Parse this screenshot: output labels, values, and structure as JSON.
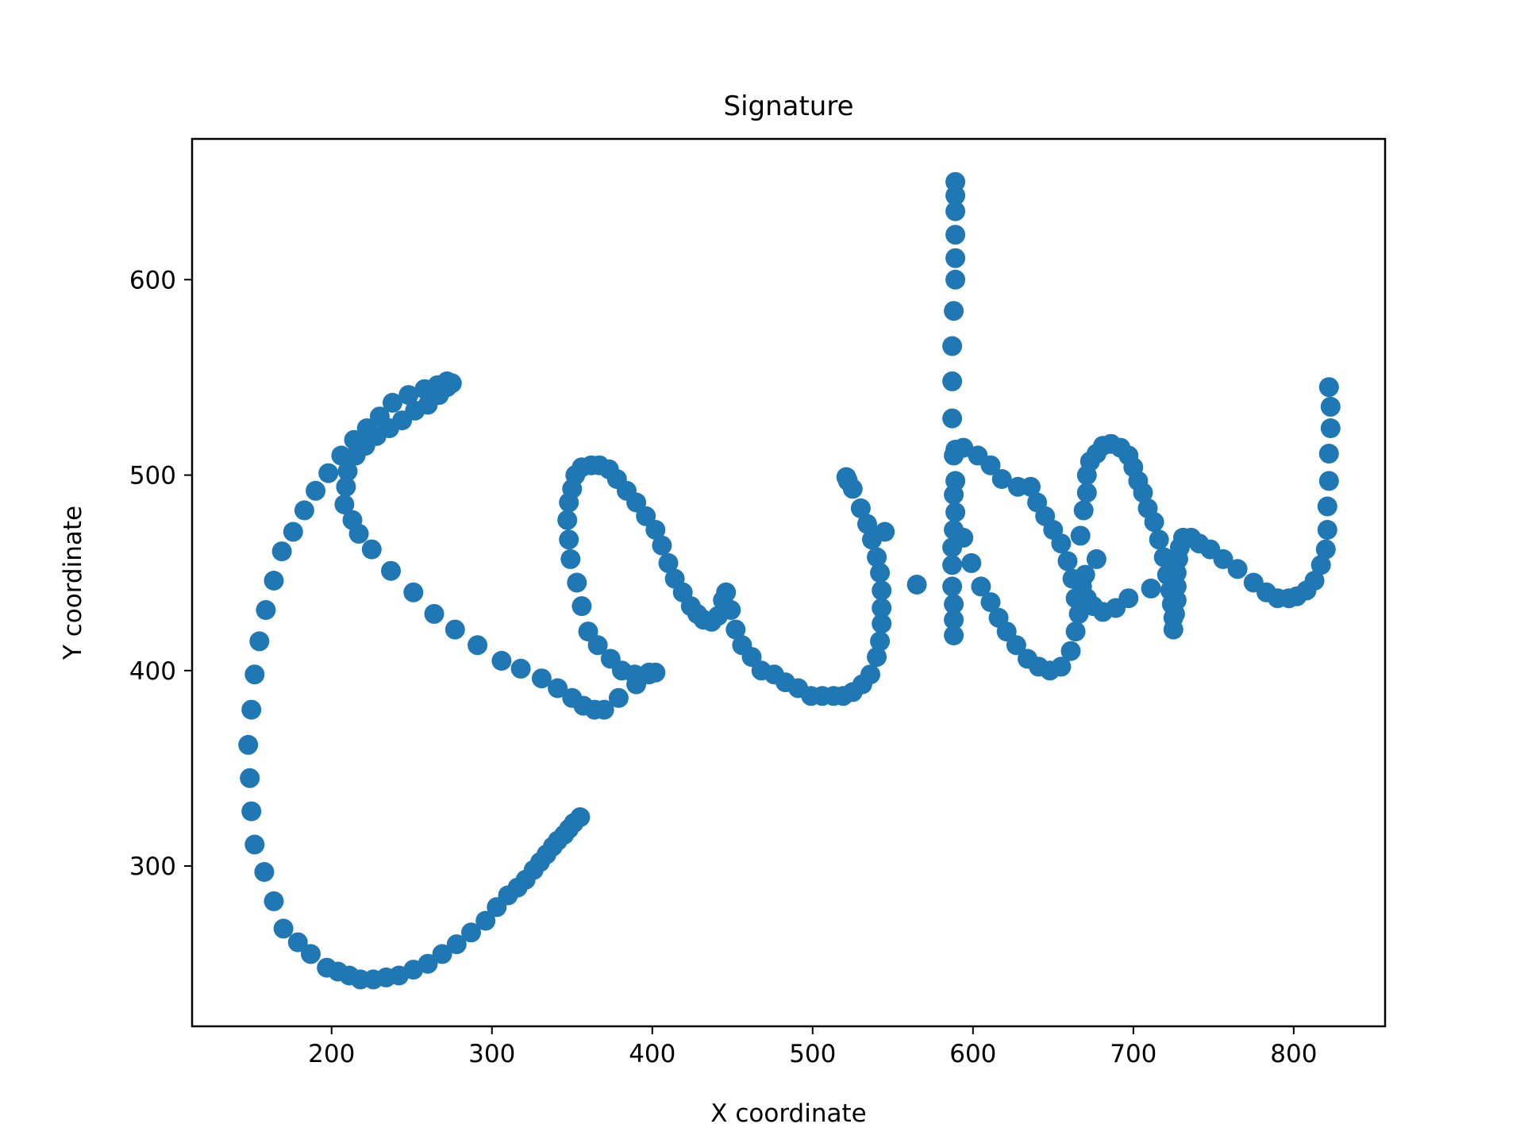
{
  "chart_data": {
    "type": "scatter",
    "title": "Signature",
    "xlabel": "X coordinate",
    "ylabel": "Y coordinate",
    "xlim": [
      113,
      857
    ],
    "ylim": [
      218,
      672
    ],
    "xticks": [
      200,
      300,
      400,
      500,
      600,
      700,
      800
    ],
    "yticks": [
      300,
      400,
      500,
      600
    ],
    "xtick_labels": [
      "200",
      "300",
      "400",
      "500",
      "600",
      "700",
      "800"
    ],
    "ytick_labels": [
      "300",
      "400",
      "500",
      "600"
    ],
    "grid": false,
    "legend": "none",
    "marker_color": "#1f77b4",
    "series": [
      {
        "points": [
          [
            355,
            325
          ],
          [
            351,
            322
          ],
          [
            348,
            319
          ],
          [
            345,
            316
          ],
          [
            341,
            313
          ],
          [
            338,
            310
          ],
          [
            334,
            306
          ],
          [
            330,
            302
          ],
          [
            326,
            298
          ],
          [
            321,
            293
          ],
          [
            316,
            289
          ],
          [
            310,
            285
          ],
          [
            303,
            279
          ],
          [
            296,
            272
          ],
          [
            287,
            266
          ],
          [
            278,
            260
          ],
          [
            269,
            255
          ],
          [
            260,
            250
          ],
          [
            251,
            247
          ],
          [
            242,
            244
          ],
          [
            234,
            243
          ],
          [
            226,
            242
          ],
          [
            218,
            242
          ],
          [
            211,
            244
          ],
          [
            204,
            246
          ],
          [
            197,
            248
          ],
          [
            187,
            255
          ],
          [
            179,
            261
          ],
          [
            170,
            268
          ],
          [
            164,
            282
          ],
          [
            158,
            297
          ],
          [
            152,
            311
          ],
          [
            150,
            328
          ],
          [
            149,
            345
          ],
          [
            148,
            362
          ],
          [
            150,
            380
          ],
          [
            152,
            398
          ],
          [
            155,
            415
          ],
          [
            159,
            431
          ],
          [
            164,
            446
          ],
          [
            169,
            461
          ],
          [
            176,
            471
          ],
          [
            183,
            482
          ],
          [
            190,
            492
          ],
          [
            198,
            501
          ],
          [
            206,
            510
          ],
          [
            214,
            518
          ],
          [
            222,
            524
          ],
          [
            230,
            530
          ],
          [
            238,
            537
          ],
          [
            248,
            541
          ],
          [
            258,
            544
          ],
          [
            266,
            546
          ],
          [
            272,
            548
          ],
          [
            275,
            547
          ],
          [
            272,
            545
          ],
          [
            267,
            541
          ],
          [
            260,
            536
          ],
          [
            252,
            533
          ],
          [
            244,
            528
          ],
          [
            236,
            524
          ],
          [
            228,
            520
          ],
          [
            221,
            515
          ],
          [
            215,
            510
          ],
          [
            210,
            502
          ],
          [
            209,
            494
          ],
          [
            208,
            485
          ],
          [
            213,
            477
          ],
          [
            217,
            470
          ],
          [
            225,
            462
          ],
          [
            237,
            451
          ],
          [
            251,
            440
          ],
          [
            264,
            429
          ],
          [
            277,
            421
          ],
          [
            291,
            413
          ],
          [
            306,
            405
          ],
          [
            318,
            401
          ],
          [
            331,
            396
          ],
          [
            341,
            391
          ],
          [
            350,
            386
          ],
          [
            357,
            382
          ],
          [
            364,
            380
          ],
          [
            370,
            380
          ],
          [
            379,
            386
          ],
          [
            390,
            393
          ],
          [
            398,
            398
          ],
          [
            402,
            399
          ],
          [
            398,
            399
          ],
          [
            389,
            398
          ],
          [
            381,
            400
          ],
          [
            374,
            406
          ],
          [
            366,
            413
          ],
          [
            360,
            420
          ],
          [
            356,
            433
          ],
          [
            353,
            445
          ],
          [
            349,
            457
          ],
          [
            348,
            467
          ],
          [
            347,
            477
          ],
          [
            348,
            486
          ],
          [
            350,
            493
          ],
          [
            352,
            500
          ],
          [
            356,
            504
          ],
          [
            362,
            505
          ],
          [
            367,
            505
          ],
          [
            373,
            503
          ],
          [
            378,
            498
          ],
          [
            384,
            492
          ],
          [
            390,
            486
          ],
          [
            396,
            479
          ],
          [
            402,
            472
          ],
          [
            406,
            464
          ],
          [
            410,
            455
          ],
          [
            414,
            447
          ],
          [
            419,
            440
          ],
          [
            424,
            433
          ],
          [
            428,
            429
          ],
          [
            432,
            426
          ],
          [
            437,
            425
          ],
          [
            441,
            428
          ],
          [
            444,
            436
          ],
          [
            446,
            440
          ],
          [
            449,
            431
          ],
          [
            452,
            421
          ],
          [
            456,
            413
          ],
          [
            462,
            407
          ],
          [
            468,
            400
          ],
          [
            476,
            398
          ],
          [
            483,
            394
          ],
          [
            491,
            391
          ],
          [
            499,
            387
          ],
          [
            506,
            387
          ],
          [
            513,
            387
          ],
          [
            519,
            387
          ],
          [
            525,
            389
          ],
          [
            531,
            393
          ],
          [
            536,
            398
          ],
          [
            540,
            407
          ],
          [
            542,
            415
          ],
          [
            543,
            424
          ],
          [
            543,
            432
          ],
          [
            543,
            441
          ],
          [
            542,
            450
          ],
          [
            540,
            458
          ],
          [
            537,
            467
          ],
          [
            534,
            475
          ],
          [
            530,
            483
          ],
          [
            525,
            493
          ],
          [
            522,
            497
          ],
          [
            521,
            499
          ],
          [
            545,
            471
          ],
          [
            565,
            444
          ],
          [
            588,
            418
          ],
          [
            588,
            426
          ],
          [
            588,
            434
          ],
          [
            587,
            443
          ],
          [
            587,
            454
          ],
          [
            587,
            463
          ],
          [
            588,
            472
          ],
          [
            589,
            481
          ],
          [
            588,
            490
          ],
          [
            589,
            497
          ],
          [
            588,
            510
          ],
          [
            587,
            529
          ],
          [
            587,
            548
          ],
          [
            587,
            566
          ],
          [
            588,
            584
          ],
          [
            589,
            600
          ],
          [
            589,
            611
          ],
          [
            589,
            623
          ],
          [
            589,
            635
          ],
          [
            589,
            643
          ],
          [
            589,
            650
          ],
          [
            594,
            468
          ],
          [
            599,
            455
          ],
          [
            605,
            443
          ],
          [
            611,
            435
          ],
          [
            616,
            427
          ],
          [
            621,
            420
          ],
          [
            627,
            413
          ],
          [
            634,
            406
          ],
          [
            641,
            402
          ],
          [
            648,
            400
          ],
          [
            655,
            402
          ],
          [
            661,
            410
          ],
          [
            664,
            420
          ],
          [
            666,
            429
          ],
          [
            664,
            437
          ],
          [
            662,
            447
          ],
          [
            659,
            456
          ],
          [
            655,
            465
          ],
          [
            650,
            472
          ],
          [
            645,
            479
          ],
          [
            640,
            486
          ],
          [
            636,
            494
          ],
          [
            628,
            494
          ],
          [
            618,
            498
          ],
          [
            611,
            505
          ],
          [
            603,
            510
          ],
          [
            594,
            514
          ],
          [
            589,
            513
          ],
          [
            667,
            469
          ],
          [
            669,
            482
          ],
          [
            671,
            491
          ],
          [
            671,
            500
          ],
          [
            673,
            507
          ],
          [
            677,
            511
          ],
          [
            681,
            515
          ],
          [
            686,
            516
          ],
          [
            692,
            514
          ],
          [
            697,
            510
          ],
          [
            700,
            504
          ],
          [
            703,
            497
          ],
          [
            706,
            491
          ],
          [
            709,
            483
          ],
          [
            713,
            476
          ],
          [
            716,
            467
          ],
          [
            719,
            458
          ],
          [
            721,
            449
          ],
          [
            723,
            441
          ],
          [
            724,
            434
          ],
          [
            725,
            427
          ],
          [
            725,
            421
          ],
          [
            726,
            429
          ],
          [
            727,
            436
          ],
          [
            727,
            443
          ],
          [
            727,
            450
          ],
          [
            728,
            457
          ],
          [
            729,
            463
          ],
          [
            731,
            468
          ],
          [
            736,
            468
          ],
          [
            741,
            465
          ],
          [
            748,
            462
          ],
          [
            756,
            457
          ],
          [
            765,
            452
          ],
          [
            775,
            445
          ],
          [
            783,
            440
          ],
          [
            790,
            437
          ],
          [
            797,
            437
          ],
          [
            802,
            438
          ],
          [
            808,
            441
          ],
          [
            813,
            446
          ],
          [
            817,
            454
          ],
          [
            820,
            462
          ],
          [
            821,
            472
          ],
          [
            821,
            484
          ],
          [
            822,
            497
          ],
          [
            822,
            511
          ],
          [
            823,
            524
          ],
          [
            823,
            535
          ],
          [
            822,
            545
          ],
          [
            711,
            442
          ],
          [
            697,
            437
          ],
          [
            689,
            432
          ],
          [
            681,
            430
          ],
          [
            675,
            433
          ],
          [
            671,
            437
          ],
          [
            668,
            443
          ],
          [
            670,
            449
          ],
          [
            677,
            457
          ]
        ]
      }
    ]
  }
}
